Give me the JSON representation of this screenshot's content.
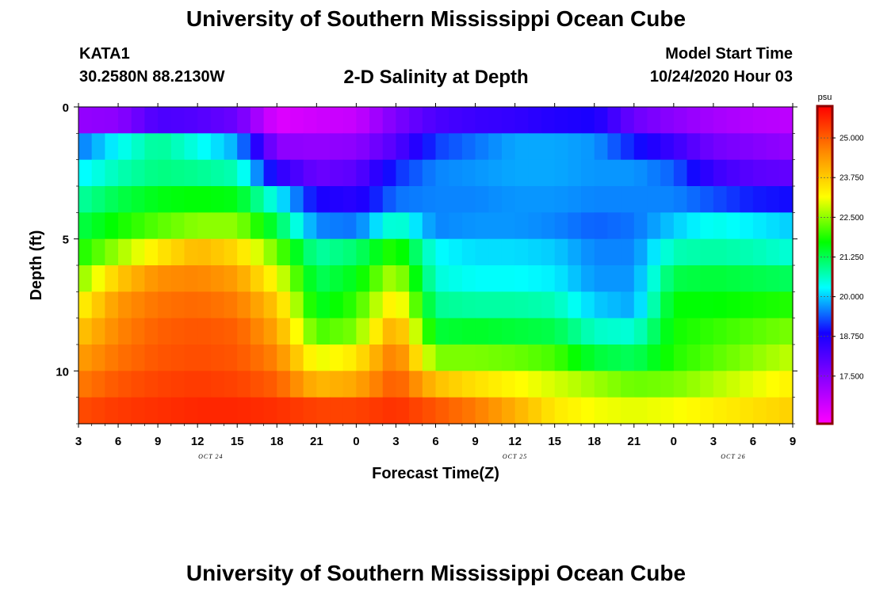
{
  "header": {
    "title": "University of Southern Mississippi Ocean Cube",
    "station": "KATA1",
    "coords": "30.2580N 88.2130W",
    "subtitle": "2-D Salinity at Depth",
    "model_start_label": "Model Start Time",
    "model_start_value": "10/24/2020 Hour 03"
  },
  "footer": {
    "title": "University of Southern Mississippi Ocean Cube"
  },
  "chart_data": {
    "type": "heatmap",
    "title": "2-D Salinity at Depth",
    "xlabel": "Forecast Time(Z)",
    "ylabel": "Depth (ft)",
    "x_range_hours": [
      0,
      54
    ],
    "x_tick_labels": [
      "3",
      "6",
      "9",
      "12",
      "15",
      "18",
      "21",
      "0",
      "3",
      "6",
      "9",
      "12",
      "15",
      "18",
      "21",
      "0",
      "3",
      "6",
      "9"
    ],
    "date_labels": [
      {
        "text": "OCT 24",
        "hour": 10
      },
      {
        "text": "OCT 25",
        "hour": 33
      },
      {
        "text": "OCT 26",
        "hour": 49.5
      }
    ],
    "y_range_ft": [
      0,
      12
    ],
    "y_tick_labels": [
      "0",
      "5",
      "10"
    ],
    "y_tick_values": [
      0,
      5,
      10
    ],
    "colorbar": {
      "unit": "psu",
      "range": [
        16.0,
        26.0
      ],
      "tick_labels": [
        "25.000",
        "23.750",
        "22.500",
        "21.250",
        "20.000",
        "18.750",
        "17.500"
      ],
      "tick_values": [
        25.0,
        23.75,
        22.5,
        21.25,
        20.0,
        18.75,
        17.5
      ]
    },
    "layer_depths_ft": [
      0.5,
      1.5,
      2.5,
      3.5,
      4.5,
      5.5,
      6.5,
      7.5,
      8.5,
      9.5,
      10.5,
      11.5
    ],
    "profile_times_hours": [
      0,
      3,
      6,
      9,
      12,
      15,
      18,
      21,
      24,
      27,
      30,
      33,
      36,
      39,
      42,
      45,
      48,
      51,
      54
    ],
    "salinity_psu": [
      [
        17.3,
        17.4,
        18.2,
        18.1,
        17.8,
        16.4,
        16.6,
        16.7,
        17.6,
        18.2,
        18.4,
        18.5,
        18.7,
        18.8,
        17.8,
        17.4,
        17.1,
        16.9,
        16.8
      ],
      [
        19.5,
        20.3,
        20.9,
        20.4,
        19.8,
        17.4,
        17.3,
        17.4,
        18.1,
        19.2,
        19.5,
        19.8,
        19.8,
        19.7,
        19.0,
        18.4,
        17.7,
        17.5,
        17.3
      ],
      [
        20.2,
        20.7,
        21.0,
        20.9,
        20.7,
        18.6,
        17.8,
        18.0,
        19.1,
        19.6,
        19.7,
        19.8,
        19.8,
        19.7,
        19.7,
        19.4,
        18.4,
        18.0,
        17.9
      ],
      [
        20.8,
        21.3,
        21.6,
        21.7,
        21.6,
        20.3,
        18.8,
        18.6,
        19.5,
        19.6,
        19.6,
        19.7,
        19.7,
        19.6,
        19.6,
        19.6,
        19.3,
        19.0,
        18.9
      ],
      [
        21.3,
        21.8,
        22.2,
        22.5,
        22.5,
        21.3,
        19.6,
        19.5,
        20.7,
        19.6,
        19.7,
        19.7,
        19.6,
        19.4,
        19.5,
        20.0,
        20.4,
        20.2,
        20.0
      ],
      [
        21.8,
        22.6,
        23.4,
        24.0,
        23.6,
        22.3,
        20.8,
        21.1,
        22.0,
        20.3,
        20.1,
        20.1,
        20.0,
        19.6,
        19.6,
        20.7,
        20.8,
        20.7,
        20.5
      ],
      [
        22.4,
        23.8,
        24.5,
        24.6,
        24.3,
        23.1,
        21.2,
        21.6,
        22.8,
        20.5,
        20.3,
        20.3,
        20.2,
        19.7,
        19.7,
        21.3,
        21.4,
        21.3,
        21.2
      ],
      [
        23.2,
        24.4,
        24.8,
        24.9,
        24.7,
        23.8,
        21.5,
        22.0,
        23.5,
        20.9,
        20.8,
        20.8,
        20.7,
        20.0,
        19.8,
        21.7,
        21.7,
        21.8,
        21.9
      ],
      [
        23.8,
        24.6,
        25.0,
        25.1,
        25.0,
        24.2,
        22.1,
        22.4,
        24.3,
        21.4,
        21.5,
        21.4,
        21.3,
        20.6,
        20.5,
        21.8,
        22.0,
        22.2,
        22.4
      ],
      [
        24.3,
        24.8,
        25.1,
        25.2,
        25.1,
        24.6,
        23.0,
        23.4,
        24.8,
        22.4,
        22.4,
        22.3,
        22.1,
        21.4,
        21.2,
        21.9,
        22.2,
        22.5,
        22.8
      ],
      [
        24.7,
        25.1,
        25.3,
        25.4,
        25.3,
        25.0,
        24.0,
        24.2,
        25.1,
        23.9,
        23.5,
        23.2,
        22.9,
        22.6,
        22.3,
        22.4,
        22.7,
        23.0,
        23.3
      ],
      [
        25.2,
        25.4,
        25.5,
        25.6,
        25.6,
        25.5,
        25.3,
        25.3,
        25.5,
        25.1,
        24.7,
        24.1,
        23.4,
        23.1,
        23.0,
        23.1,
        23.3,
        23.5,
        23.7
      ]
    ],
    "colormap": [
      "#ff00ff",
      "#8a00ff",
      "#1400ff",
      "#00ffff",
      "#00ff00",
      "#ffff00",
      "#ff8800",
      "#ff0000"
    ],
    "colorbar_outline": "#8b0000"
  }
}
